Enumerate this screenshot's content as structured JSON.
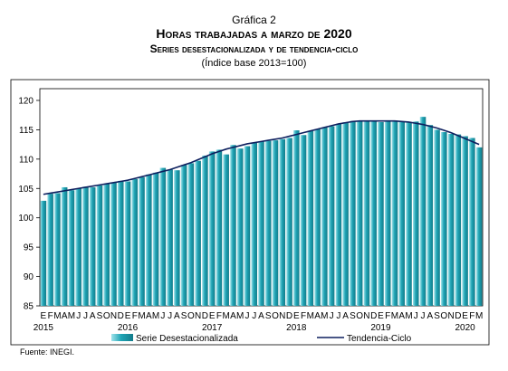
{
  "figure": {
    "label": "Gráfica 2",
    "title": "Horas trabajadas a marzo de 2020",
    "subtitle": "Series desestacionalizada y de tendencia-ciclo",
    "note": "(Índice base 2013=100)",
    "source": "Fuente: INEGI."
  },
  "chart_data": {
    "type": "bar",
    "ylim": [
      85,
      122
    ],
    "yticks": [
      85,
      90,
      95,
      100,
      105,
      110,
      115,
      120
    ],
    "grid": false,
    "legend_position": "bottom",
    "month_labels": [
      "E",
      "F",
      "M",
      "A",
      "M",
      "J",
      "J",
      "A",
      "S",
      "O",
      "N",
      "D",
      "E",
      "F",
      "M",
      "A",
      "M",
      "J",
      "J",
      "A",
      "S",
      "O",
      "N",
      "D",
      "E",
      "F",
      "M",
      "A",
      "M",
      "J",
      "J",
      "A",
      "S",
      "O",
      "N",
      "D",
      "E",
      "F",
      "M",
      "A",
      "M",
      "J",
      "J",
      "A",
      "S",
      "O",
      "N",
      "D",
      "E",
      "F",
      "M",
      "A",
      "M",
      "J",
      "J",
      "A",
      "S",
      "O",
      "N",
      "D",
      "E",
      "F",
      "M"
    ],
    "years": [
      {
        "label": "2015",
        "start_index": 0
      },
      {
        "label": "2016",
        "start_index": 12
      },
      {
        "label": "2017",
        "start_index": 24
      },
      {
        "label": "2018",
        "start_index": 36
      },
      {
        "label": "2019",
        "start_index": 48
      },
      {
        "label": "2020",
        "start_index": 60
      }
    ],
    "series": [
      {
        "name": "Serie Desestacionalizada",
        "kind": "bar",
        "color": "#1fa4b5",
        "values": [
          102.9,
          104.1,
          104.2,
          105.2,
          104.7,
          105.0,
          105.3,
          105.2,
          105.5,
          105.8,
          106.0,
          106.3,
          106.2,
          106.6,
          106.9,
          107.4,
          107.7,
          108.5,
          108.2,
          108.1,
          109.0,
          109.3,
          109.7,
          110.6,
          111.3,
          111.6,
          110.8,
          112.4,
          111.8,
          112.2,
          112.8,
          113.0,
          113.1,
          113.2,
          113.4,
          113.6,
          114.9,
          114.1,
          114.8,
          115.1,
          115.4,
          115.6,
          116.0,
          116.3,
          116.5,
          116.5,
          116.4,
          116.5,
          116.3,
          116.6,
          116.5,
          116.4,
          116.3,
          116.4,
          117.2,
          115.8,
          115.0,
          114.6,
          114.3,
          114.2,
          113.9,
          113.6,
          112.0
        ]
      },
      {
        "name": "Tendencia-Ciclo",
        "kind": "line",
        "color": "#0d1f5e",
        "values": [
          104.0,
          104.2,
          104.4,
          104.6,
          104.8,
          105.0,
          105.2,
          105.4,
          105.6,
          105.8,
          106.0,
          106.2,
          106.4,
          106.7,
          107.0,
          107.3,
          107.6,
          107.9,
          108.2,
          108.6,
          109.0,
          109.4,
          109.9,
          110.4,
          110.9,
          111.3,
          111.7,
          112.0,
          112.3,
          112.6,
          112.8,
          113.0,
          113.2,
          113.4,
          113.6,
          113.9,
          114.2,
          114.5,
          114.8,
          115.1,
          115.4,
          115.7,
          116.0,
          116.2,
          116.4,
          116.5,
          116.5,
          116.5,
          116.5,
          116.5,
          116.5,
          116.4,
          116.3,
          116.1,
          115.9,
          115.6,
          115.3,
          114.9,
          114.5,
          114.0,
          113.5,
          113.0,
          112.5
        ]
      }
    ]
  }
}
